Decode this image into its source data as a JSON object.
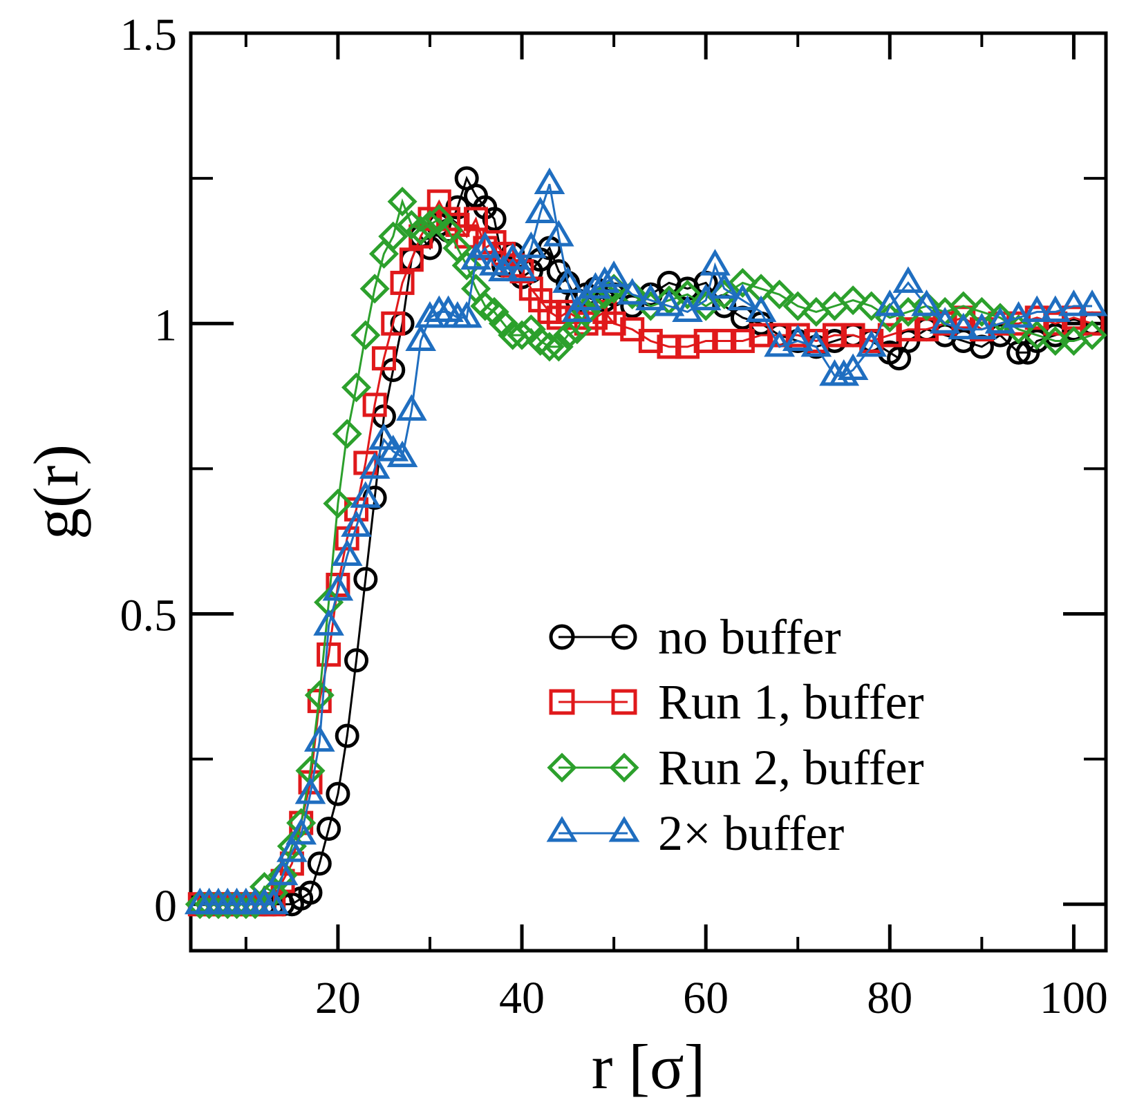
{
  "chart_data": {
    "type": "line",
    "title": "",
    "xlabel": "r [σ]",
    "ylabel": "g(r)",
    "xlim": [
      4,
      103.5
    ],
    "ylim": [
      -0.08,
      1.5
    ],
    "xticks": [
      20,
      40,
      60,
      80,
      100
    ],
    "xtick_labels": [
      "20",
      "40",
      "60",
      "80",
      "100"
    ],
    "yticks": [
      0,
      0.5,
      1,
      1.5
    ],
    "ytick_labels": [
      "0",
      "0.5",
      "1",
      "1.5"
    ],
    "y_minor_ticks": [
      0.25,
      0.75,
      1.25
    ],
    "x_minor_ticks": [
      10,
      30,
      50,
      70,
      90
    ],
    "grid": false,
    "legend_position": "lower-right",
    "series": [
      {
        "name": "no buffer",
        "color": "#000000",
        "marker": "circle",
        "x": [
          5,
          6,
          7,
          8,
          9,
          10,
          11,
          12,
          13,
          14,
          15,
          16,
          17,
          18,
          19,
          20,
          21,
          22,
          23,
          24,
          25,
          26,
          27,
          28,
          29,
          30,
          31,
          32,
          33,
          34,
          35,
          36,
          37,
          38,
          39,
          40,
          41,
          42,
          43,
          44,
          45,
          46,
          47,
          48,
          49,
          50,
          52,
          54,
          56,
          58,
          60,
          62,
          64,
          66,
          68,
          70,
          72,
          74,
          76,
          78,
          80,
          81,
          82,
          84,
          86,
          88,
          90,
          92,
          94,
          95,
          96,
          98,
          100,
          102
        ],
        "y": [
          0,
          0,
          0,
          0,
          0,
          0,
          0,
          0,
          0,
          0,
          0,
          0.01,
          0.02,
          0.07,
          0.13,
          0.19,
          0.29,
          0.42,
          0.56,
          0.7,
          0.84,
          0.92,
          1.0,
          1.11,
          1.15,
          1.13,
          1.17,
          1.16,
          1.2,
          1.25,
          1.22,
          1.2,
          1.18,
          1.1,
          1.12,
          1.08,
          1.09,
          1.11,
          1.13,
          1.09,
          1.07,
          1.04,
          1.05,
          1.06,
          1.04,
          1.05,
          1.03,
          1.05,
          1.07,
          1.06,
          1.07,
          1.03,
          1.01,
          1.0,
          0.98,
          0.97,
          0.96,
          0.97,
          0.98,
          0.97,
          0.95,
          0.94,
          0.97,
          0.99,
          0.98,
          0.97,
          0.96,
          0.98,
          0.95,
          0.95,
          0.97,
          0.98,
          0.99,
          1.0
        ]
      },
      {
        "name": "Run 1, buffer",
        "color": "#e0191b",
        "marker": "square",
        "x": [
          5,
          6,
          7,
          8,
          9,
          10,
          11,
          12,
          13,
          14,
          15,
          16,
          17,
          18,
          19,
          20,
          21,
          22,
          23,
          24,
          25,
          26,
          27,
          28,
          29,
          30,
          31,
          32,
          33,
          34,
          35,
          36,
          37,
          38,
          39,
          40,
          41,
          42,
          43,
          44,
          45,
          46,
          47,
          48,
          49,
          50,
          52,
          54,
          56,
          58,
          60,
          62,
          64,
          66,
          68,
          70,
          72,
          74,
          76,
          78,
          80,
          82,
          84,
          86,
          88,
          90,
          92,
          94,
          96,
          98,
          100,
          102
        ],
        "y": [
          0,
          0,
          0,
          0,
          0,
          0,
          0,
          0,
          0,
          0.04,
          0.07,
          0.14,
          0.21,
          0.35,
          0.43,
          0.55,
          0.63,
          0.68,
          0.76,
          0.86,
          0.94,
          1.0,
          1.07,
          1.11,
          1.15,
          1.18,
          1.21,
          1.18,
          1.17,
          1.15,
          1.18,
          1.13,
          1.14,
          1.12,
          1.1,
          1.09,
          1.06,
          1.04,
          1.02,
          1.01,
          1.02,
          1.01,
          1.0,
          1.01,
          1.02,
          1.0,
          0.99,
          0.97,
          0.96,
          0.96,
          0.97,
          0.97,
          0.97,
          0.98,
          0.98,
          0.98,
          0.97,
          0.98,
          0.98,
          0.97,
          0.98,
          0.99,
          0.99,
          1.0,
          1.01,
          0.99,
          1.0,
          1.0,
          1.01,
          1.0,
          1.01,
          1.0
        ]
      },
      {
        "name": "Run 2, buffer",
        "color": "#2ca02c",
        "marker": "diamond",
        "x": [
          5,
          6,
          7,
          8,
          9,
          10,
          11,
          12,
          13,
          14,
          15,
          16,
          17,
          18,
          19,
          20,
          21,
          22,
          23,
          24,
          25,
          26,
          27,
          28,
          29,
          30,
          31,
          32,
          33,
          34,
          35,
          36,
          37,
          38,
          39,
          40,
          41,
          42,
          43,
          44,
          45,
          46,
          47,
          48,
          49,
          50,
          52,
          54,
          56,
          58,
          60,
          62,
          64,
          66,
          68,
          70,
          72,
          74,
          76,
          78,
          80,
          82,
          84,
          86,
          88,
          90,
          92,
          94,
          96,
          98,
          100,
          102
        ],
        "y": [
          0,
          0,
          0,
          0,
          0,
          0,
          0,
          0.03,
          0.02,
          0.05,
          0.1,
          0.14,
          0.23,
          0.36,
          0.52,
          0.69,
          0.81,
          0.89,
          0.98,
          1.06,
          1.12,
          1.15,
          1.21,
          1.17,
          1.16,
          1.17,
          1.18,
          1.16,
          1.13,
          1.1,
          1.06,
          1.03,
          1.02,
          1.0,
          0.98,
          0.98,
          0.99,
          0.97,
          0.96,
          0.96,
          0.98,
          0.99,
          1.02,
          1.04,
          1.05,
          1.06,
          1.05,
          1.03,
          1.04,
          1.05,
          1.03,
          1.05,
          1.07,
          1.06,
          1.05,
          1.03,
          1.02,
          1.03,
          1.04,
          1.03,
          1.01,
          1.02,
          1.03,
          1.02,
          1.03,
          1.02,
          1.01,
          0.99,
          0.98,
          0.97,
          0.97,
          0.98
        ]
      },
      {
        "name": "2× buffer",
        "color": "#1f6ec0",
        "marker": "triangle",
        "x": [
          5,
          6,
          7,
          8,
          9,
          10,
          11,
          12,
          13,
          14,
          15,
          16,
          17,
          18,
          19,
          20,
          21,
          22,
          23,
          24,
          25,
          26,
          27,
          28,
          29,
          30,
          31,
          32,
          33,
          34,
          35,
          36,
          37,
          38,
          39,
          40,
          41,
          42,
          43,
          44,
          45,
          46,
          47,
          48,
          49,
          50,
          52,
          54,
          56,
          58,
          60,
          61,
          62,
          64,
          66,
          68,
          70,
          72,
          74,
          75,
          76,
          78,
          80,
          82,
          84,
          86,
          88,
          90,
          92,
          94,
          96,
          98,
          100,
          102
        ],
        "y": [
          0,
          0,
          0,
          0,
          0,
          0,
          0,
          0,
          0,
          0.05,
          0.09,
          0.12,
          0.19,
          0.28,
          0.48,
          0.54,
          0.6,
          0.65,
          0.7,
          0.75,
          0.8,
          0.78,
          0.77,
          0.85,
          0.97,
          1.01,
          1.02,
          1.02,
          1.01,
          1.01,
          1.11,
          1.13,
          1.1,
          1.09,
          1.11,
          1.09,
          1.13,
          1.19,
          1.24,
          1.15,
          1.07,
          1.02,
          1.04,
          1.06,
          1.07,
          1.08,
          1.05,
          1.04,
          1.03,
          1.02,
          1.04,
          1.1,
          1.06,
          1.04,
          1.02,
          0.96,
          0.97,
          0.96,
          0.91,
          0.91,
          0.92,
          0.96,
          1.03,
          1.07,
          1.03,
          1.0,
          0.99,
          0.99,
          1.0,
          1.01,
          1.02,
          1.02,
          1.03,
          1.03
        ]
      }
    ]
  }
}
